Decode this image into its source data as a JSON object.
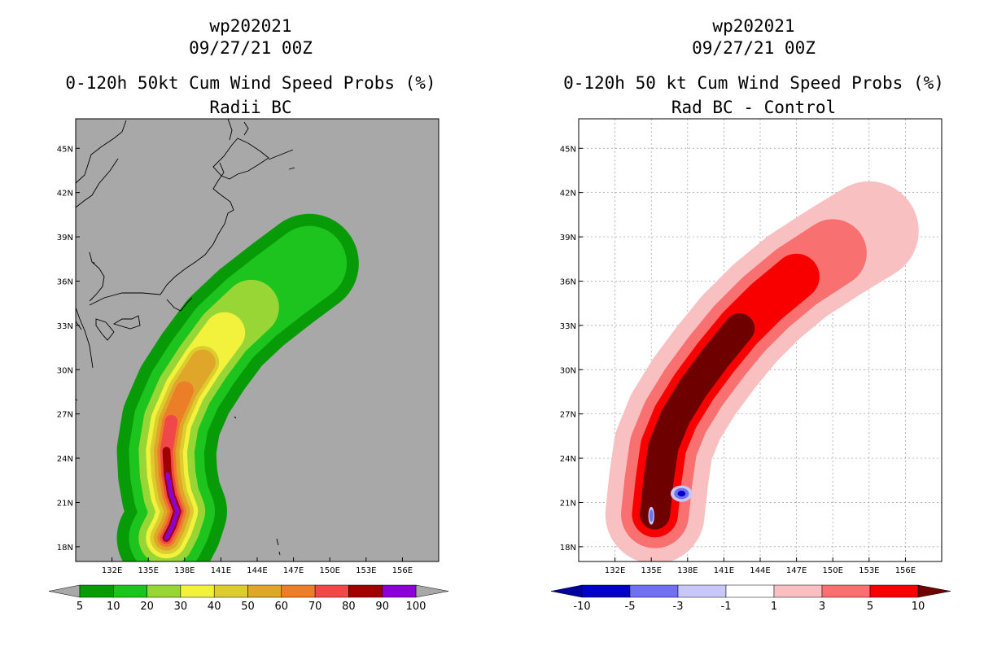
{
  "chart_data": [
    {
      "type": "heatmap",
      "storm_id": "wp202021",
      "datetime": "09/27/21 00Z",
      "title": "0-120h 50kt Cum Wind Speed Probs (%)",
      "subtitle": "Radii BC",
      "x_ticks": [
        "132E",
        "135E",
        "138E",
        "141E",
        "144E",
        "147E",
        "150E",
        "153E",
        "156E"
      ],
      "y_ticks": [
        "18N",
        "21N",
        "24N",
        "27N",
        "30N",
        "33N",
        "36N",
        "39N",
        "42N",
        "45N"
      ],
      "lon_range": [
        129,
        159
      ],
      "lat_range": [
        17,
        47
      ],
      "background": "#a8a8a8",
      "colorbar": {
        "labels": [
          "5",
          "10",
          "20",
          "30",
          "40",
          "50",
          "60",
          "70",
          "80",
          "90",
          "100"
        ],
        "colors": [
          "#079b07",
          "#1dc41d",
          "#97d634",
          "#f2f23c",
          "#dccc2e",
          "#e0a62a",
          "#ec7e28",
          "#f04848",
          "#a00000",
          "#8a00d6"
        ],
        "end_color": "#a8a8a8"
      },
      "track": [
        [
          136.5,
          18.6
        ],
        [
          137.0,
          19.4
        ],
        [
          137.4,
          20.4
        ],
        [
          136.9,
          21.5
        ],
        [
          136.6,
          22.9
        ],
        [
          136.5,
          24.5
        ],
        [
          136.9,
          26.5
        ],
        [
          138.0,
          28.6
        ],
        [
          139.5,
          30.5
        ],
        [
          141.3,
          32.5
        ],
        [
          143.5,
          34.2
        ],
        [
          146.0,
          35.8
        ],
        [
          148.3,
          37.2
        ]
      ],
      "band_widths": [
        8.2,
        6.2,
        4.6,
        3.4,
        2.7,
        2.1,
        1.5,
        1.05,
        0.65,
        0.35
      ],
      "band_colors": [
        "#079b07",
        "#1dc41d",
        "#97d634",
        "#f2f23c",
        "#dccc2e",
        "#e0a62a",
        "#ec7e28",
        "#f04848",
        "#a00000",
        "#8a00d6"
      ],
      "band_ends": [
        13,
        13,
        11,
        10,
        9,
        9,
        8,
        7,
        6,
        5
      ]
    },
    {
      "type": "heatmap",
      "storm_id": "wp202021",
      "datetime": "09/27/21 00Z",
      "title": "0-120h 50 kt Cum Wind Speed Probs (%)",
      "subtitle": "Rad BC - Control",
      "x_ticks": [
        "132E",
        "135E",
        "138E",
        "141E",
        "144E",
        "147E",
        "150E",
        "153E",
        "156E"
      ],
      "y_ticks": [
        "18N",
        "21N",
        "24N",
        "27N",
        "30N",
        "33N",
        "36N",
        "39N",
        "42N",
        "45N"
      ],
      "lon_range": [
        129,
        159
      ],
      "lat_range": [
        17,
        47
      ],
      "background": "#ffffff",
      "colorbar": {
        "labels": [
          "-10",
          "-5",
          "-3",
          "-1",
          "1",
          "3",
          "5",
          "10"
        ],
        "colors": [
          "#0000c8",
          "#7070f0",
          "#c8c8f8",
          "#ffffff",
          "#f8c0c0",
          "#f87070",
          "#f80000"
        ],
        "low_color": "#0000a0",
        "high_color": "#6e0000"
      },
      "track": [
        [
          135.3,
          20.2
        ],
        [
          135.6,
          22.5
        ],
        [
          136.0,
          24.8
        ],
        [
          137.0,
          26.8
        ],
        [
          138.5,
          28.8
        ],
        [
          140.3,
          30.8
        ],
        [
          142.3,
          32.8
        ],
        [
          144.5,
          34.6
        ],
        [
          147.0,
          36.3
        ],
        [
          150.0,
          37.9
        ],
        [
          153.0,
          39.4
        ]
      ],
      "band_widths": [
        8.2,
        5.6,
        3.8,
        2.5
      ],
      "band_colors": [
        "#f8c0c0",
        "#f87070",
        "#f80000",
        "#6e0000"
      ],
      "band_ends": [
        11,
        10,
        9,
        7
      ],
      "negative_blobs": [
        {
          "lon": 137.5,
          "lat": 21.6,
          "rx": 0.9,
          "ry": 0.55,
          "colors": [
            "#c8c8f8",
            "#7070f0",
            "#0000c8"
          ]
        },
        {
          "lon": 135.0,
          "lat": 20.1,
          "rx": 0.25,
          "ry": 0.6,
          "colors": [
            "#c8c8f8",
            "#7070f0"
          ]
        }
      ]
    }
  ]
}
